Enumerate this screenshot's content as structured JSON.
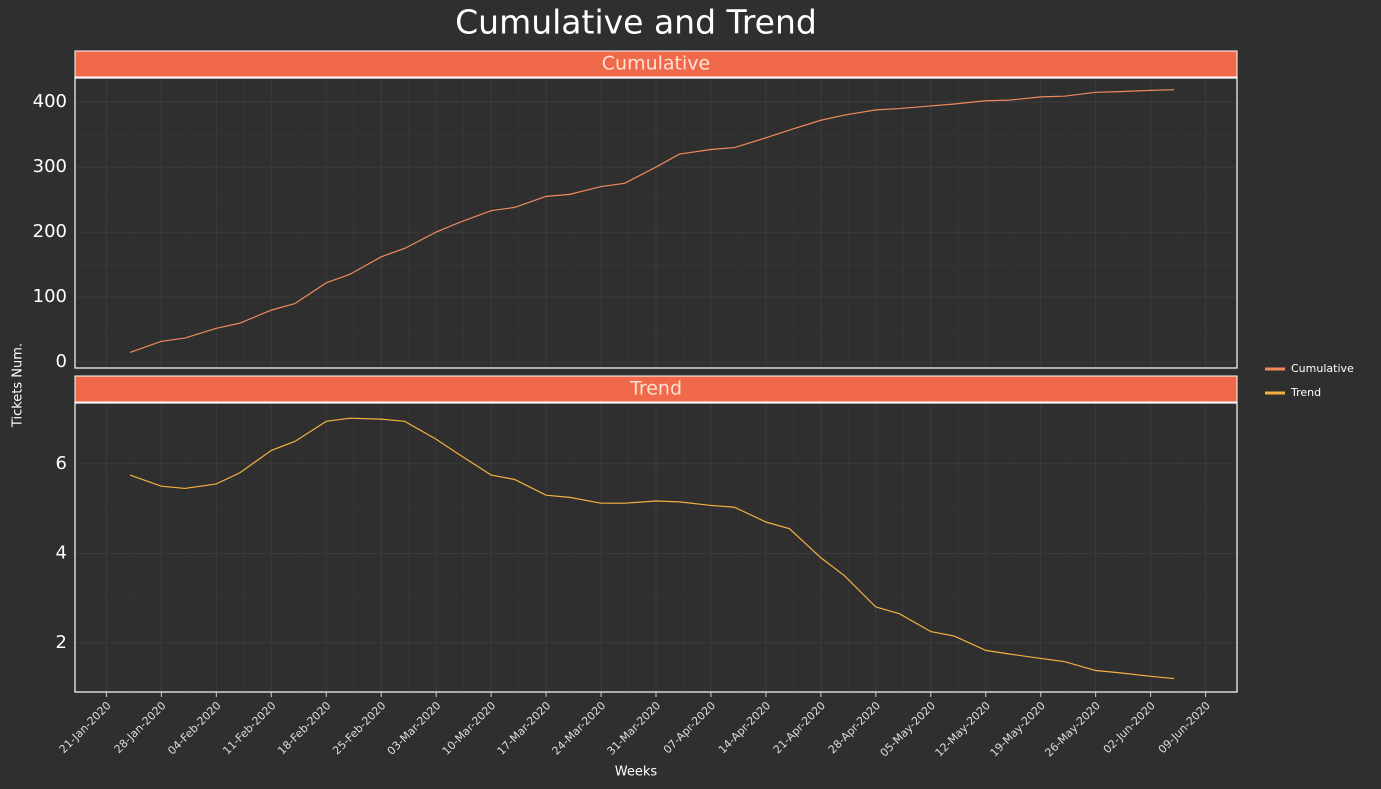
{
  "title": "Cumulative and Trend",
  "y_label": "Tickets Num.",
  "x_label": "Weeks",
  "chart_data": [
    {
      "type": "line",
      "title": "Cumulative",
      "grid": true,
      "x": [
        "2020-01-24",
        "2020-01-28",
        "2020-01-31",
        "2020-02-04",
        "2020-02-07",
        "2020-02-11",
        "2020-02-14",
        "2020-02-18",
        "2020-02-21",
        "2020-02-25",
        "2020-02-28",
        "2020-03-03",
        "2020-03-06",
        "2020-03-10",
        "2020-03-13",
        "2020-03-17",
        "2020-03-20",
        "2020-03-24",
        "2020-03-27",
        "2020-03-31",
        "2020-04-03",
        "2020-04-07",
        "2020-04-10",
        "2020-04-14",
        "2020-04-17",
        "2020-04-21",
        "2020-04-24",
        "2020-04-28",
        "2020-05-01",
        "2020-05-05",
        "2020-05-08",
        "2020-05-12",
        "2020-05-15",
        "2020-05-19",
        "2020-05-22",
        "2020-05-26",
        "2020-05-29",
        "2020-06-02",
        "2020-06-05"
      ],
      "series": [
        {
          "name": "Cumulative",
          "color": "#f08a5d",
          "values": [
            15,
            32,
            37,
            52,
            60,
            80,
            90,
            122,
            135,
            162,
            175,
            200,
            215,
            233,
            238,
            255,
            258,
            270,
            275,
            300,
            320,
            327,
            330,
            345,
            357,
            372,
            380,
            388,
            390,
            394,
            397,
            402,
            403,
            408,
            409,
            415,
            416,
            418,
            419
          ]
        }
      ],
      "xlim": [
        "2020-01-17",
        "2020-06-13"
      ],
      "ylim": [
        -9,
        437
      ],
      "yticks": [
        0,
        100,
        200,
        300,
        400
      ]
    },
    {
      "type": "line",
      "title": "Trend",
      "grid": true,
      "x": [
        "2020-01-24",
        "2020-01-28",
        "2020-01-31",
        "2020-02-04",
        "2020-02-07",
        "2020-02-11",
        "2020-02-14",
        "2020-02-18",
        "2020-02-21",
        "2020-02-25",
        "2020-02-28",
        "2020-03-03",
        "2020-03-06",
        "2020-03-10",
        "2020-03-13",
        "2020-03-17",
        "2020-03-20",
        "2020-03-24",
        "2020-03-27",
        "2020-03-31",
        "2020-04-03",
        "2020-04-07",
        "2020-04-10",
        "2020-04-14",
        "2020-04-17",
        "2020-04-21",
        "2020-04-24",
        "2020-04-28",
        "2020-05-01",
        "2020-05-05",
        "2020-05-08",
        "2020-05-12",
        "2020-05-15",
        "2020-05-19",
        "2020-05-22",
        "2020-05-26",
        "2020-05-29",
        "2020-06-02",
        "2020-06-05"
      ],
      "series": [
        {
          "name": "Trend",
          "color": "#f5b041",
          "values": [
            5.75,
            5.5,
            5.45,
            5.55,
            5.8,
            6.3,
            6.5,
            6.95,
            7.02,
            7.0,
            6.95,
            6.55,
            6.2,
            5.75,
            5.65,
            5.3,
            5.25,
            5.12,
            5.12,
            5.17,
            5.15,
            5.07,
            5.03,
            4.7,
            4.55,
            3.9,
            3.5,
            2.8,
            2.65,
            2.25,
            2.15,
            1.83,
            1.75,
            1.65,
            1.58,
            1.38,
            1.33,
            1.25,
            1.2
          ]
        }
      ],
      "xlim": [
        "2020-01-17",
        "2020-06-13"
      ],
      "xticks": [
        {
          "value": "2020-01-21",
          "label": "21-Jan-2020"
        },
        {
          "value": "2020-01-28",
          "label": "28-Jan-2020"
        },
        {
          "value": "2020-02-04",
          "label": "04-Feb-2020"
        },
        {
          "value": "2020-02-11",
          "label": "11-Feb-2020"
        },
        {
          "value": "2020-02-18",
          "label": "18-Feb-2020"
        },
        {
          "value": "2020-02-25",
          "label": "25-Feb-2020"
        },
        {
          "value": "2020-03-03",
          "label": "03-Mar-2020"
        },
        {
          "value": "2020-03-10",
          "label": "10-Mar-2020"
        },
        {
          "value": "2020-03-17",
          "label": "17-Mar-2020"
        },
        {
          "value": "2020-03-24",
          "label": "24-Mar-2020"
        },
        {
          "value": "2020-03-31",
          "label": "31-Mar-2020"
        },
        {
          "value": "2020-04-07",
          "label": "07-Apr-2020"
        },
        {
          "value": "2020-04-14",
          "label": "14-Apr-2020"
        },
        {
          "value": "2020-04-21",
          "label": "21-Apr-2020"
        },
        {
          "value": "2020-04-28",
          "label": "28-Apr-2020"
        },
        {
          "value": "2020-05-05",
          "label": "05-May-2020"
        },
        {
          "value": "2020-05-12",
          "label": "12-May-2020"
        },
        {
          "value": "2020-05-19",
          "label": "19-May-2020"
        },
        {
          "value": "2020-05-26",
          "label": "26-May-2020"
        },
        {
          "value": "2020-06-02",
          "label": "02-Jun-2020"
        },
        {
          "value": "2020-06-09",
          "label": "09-Jun-2020"
        }
      ],
      "ylim": [
        0.9,
        7.36
      ],
      "yticks": [
        2,
        4,
        6
      ]
    }
  ]
}
